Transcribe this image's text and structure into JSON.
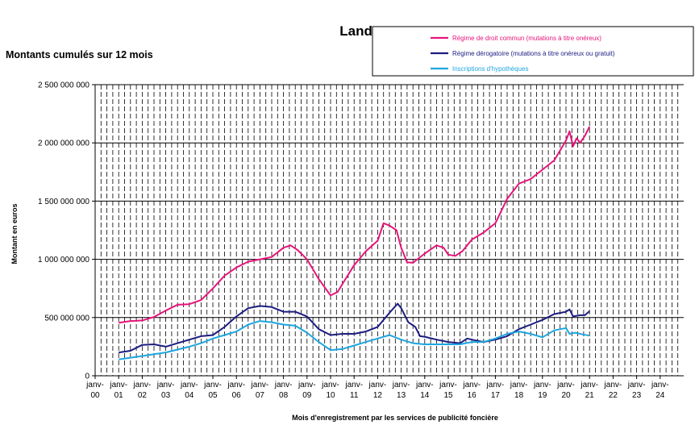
{
  "chart_data": {
    "type": "line",
    "title": "Landes",
    "subtitle": "Montants cumulés sur 12 mois",
    "xlabel": "Mois d'enregistrement par les services de publicité foncière",
    "ylabel": "Montant en euros",
    "ylim": [
      0,
      2500000000
    ],
    "yticks": [
      0,
      500000000,
      1000000000,
      1500000000,
      2000000000,
      2500000000
    ],
    "ytick_labels": [
      "0",
      "500 000 000",
      "1 000 000 000",
      "1 500 000 000",
      "2 000 000 000",
      "2 500 000 000"
    ],
    "x_tick_labels": [
      {
        "top": "janv-",
        "bottom": "00"
      },
      {
        "top": "janv-",
        "bottom": "01"
      },
      {
        "top": "janv-",
        "bottom": "02"
      },
      {
        "top": "janv-",
        "bottom": "03"
      },
      {
        "top": "janv-",
        "bottom": "04"
      },
      {
        "top": "janv-",
        "bottom": "05"
      },
      {
        "top": "janv-",
        "bottom": "06"
      },
      {
        "top": "janv-",
        "bottom": "07"
      },
      {
        "top": "janv-",
        "bottom": "08"
      },
      {
        "top": "janv-",
        "bottom": "09"
      },
      {
        "top": "janv-",
        "bottom": "10"
      },
      {
        "top": "janv-",
        "bottom": "11"
      },
      {
        "top": "janv-",
        "bottom": "12"
      },
      {
        "top": "janv-",
        "bottom": "13"
      },
      {
        "top": "janv-",
        "bottom": "14"
      },
      {
        "top": "janv-",
        "bottom": "15"
      },
      {
        "top": "janv-",
        "bottom": "16"
      },
      {
        "top": "janv-",
        "bottom": "17"
      },
      {
        "top": "janv-",
        "bottom": "18"
      },
      {
        "top": "janv-",
        "bottom": "19"
      },
      {
        "top": "janv-",
        "bottom": "20"
      },
      {
        "top": "janv-",
        "bottom": "21"
      },
      {
        "top": "janv-",
        "bottom": "22"
      },
      {
        "top": "janv-",
        "bottom": "23"
      },
      {
        "top": "janv-",
        "bottom": "24"
      }
    ],
    "x_range_years": [
      2000,
      2025
    ],
    "grid": "vertical-dashed-quarterly, horizontal-solid",
    "legend_position": "top-right",
    "series": [
      {
        "name": "Régime de droit commun (mutations à titre onéreux)",
        "color": "#e6147a",
        "points": [
          [
            2001.0,
            455000000
          ],
          [
            2001.5,
            470000000
          ],
          [
            2002.0,
            475000000
          ],
          [
            2002.5,
            505000000
          ],
          [
            2003.0,
            560000000
          ],
          [
            2003.5,
            610000000
          ],
          [
            2004.0,
            615000000
          ],
          [
            2004.5,
            650000000
          ],
          [
            2005.0,
            750000000
          ],
          [
            2005.5,
            860000000
          ],
          [
            2006.0,
            930000000
          ],
          [
            2006.5,
            980000000
          ],
          [
            2007.0,
            1000000000
          ],
          [
            2007.5,
            1020000000
          ],
          [
            2008.0,
            1100000000
          ],
          [
            2008.3,
            1120000000
          ],
          [
            2008.6,
            1080000000
          ],
          [
            2009.0,
            1000000000
          ],
          [
            2009.5,
            830000000
          ],
          [
            2010.0,
            690000000
          ],
          [
            2010.3,
            720000000
          ],
          [
            2010.6,
            820000000
          ],
          [
            2011.0,
            950000000
          ],
          [
            2011.5,
            1070000000
          ],
          [
            2012.0,
            1160000000
          ],
          [
            2012.25,
            1310000000
          ],
          [
            2012.5,
            1290000000
          ],
          [
            2012.8,
            1250000000
          ],
          [
            2013.0,
            1100000000
          ],
          [
            2013.25,
            975000000
          ],
          [
            2013.5,
            970000000
          ],
          [
            2014.0,
            1050000000
          ],
          [
            2014.5,
            1120000000
          ],
          [
            2014.8,
            1100000000
          ],
          [
            2015.0,
            1040000000
          ],
          [
            2015.3,
            1030000000
          ],
          [
            2015.6,
            1070000000
          ],
          [
            2016.0,
            1170000000
          ],
          [
            2016.5,
            1230000000
          ],
          [
            2017.0,
            1310000000
          ],
          [
            2017.5,
            1520000000
          ],
          [
            2018.0,
            1650000000
          ],
          [
            2018.5,
            1690000000
          ],
          [
            2019.0,
            1770000000
          ],
          [
            2019.5,
            1850000000
          ],
          [
            2020.0,
            2020000000
          ],
          [
            2020.15,
            2100000000
          ],
          [
            2020.3,
            1970000000
          ],
          [
            2020.45,
            2040000000
          ],
          [
            2020.6,
            2000000000
          ],
          [
            2020.8,
            2060000000
          ],
          [
            2021.0,
            2140000000
          ]
        ]
      },
      {
        "name": "Régime dérogatoire (mutations à titre onéreux ou gratuit)",
        "color": "#1c1c80",
        "points": [
          [
            2001.0,
            200000000
          ],
          [
            2001.5,
            215000000
          ],
          [
            2002.0,
            265000000
          ],
          [
            2002.5,
            270000000
          ],
          [
            2003.0,
            250000000
          ],
          [
            2003.5,
            280000000
          ],
          [
            2004.0,
            310000000
          ],
          [
            2004.5,
            340000000
          ],
          [
            2005.0,
            350000000
          ],
          [
            2005.5,
            420000000
          ],
          [
            2006.0,
            510000000
          ],
          [
            2006.5,
            580000000
          ],
          [
            2007.0,
            600000000
          ],
          [
            2007.5,
            590000000
          ],
          [
            2008.0,
            550000000
          ],
          [
            2008.5,
            550000000
          ],
          [
            2009.0,
            510000000
          ],
          [
            2009.5,
            400000000
          ],
          [
            2010.0,
            350000000
          ],
          [
            2010.5,
            360000000
          ],
          [
            2011.0,
            360000000
          ],
          [
            2011.5,
            380000000
          ],
          [
            2012.0,
            420000000
          ],
          [
            2012.5,
            540000000
          ],
          [
            2012.85,
            620000000
          ],
          [
            2013.0,
            580000000
          ],
          [
            2013.3,
            460000000
          ],
          [
            2013.6,
            420000000
          ],
          [
            2013.8,
            340000000
          ],
          [
            2014.0,
            335000000
          ],
          [
            2014.5,
            310000000
          ],
          [
            2015.0,
            290000000
          ],
          [
            2015.5,
            280000000
          ],
          [
            2015.8,
            320000000
          ],
          [
            2016.0,
            310000000
          ],
          [
            2016.5,
            290000000
          ],
          [
            2017.0,
            310000000
          ],
          [
            2017.5,
            340000000
          ],
          [
            2018.0,
            400000000
          ],
          [
            2018.5,
            440000000
          ],
          [
            2019.0,
            480000000
          ],
          [
            2019.5,
            530000000
          ],
          [
            2020.0,
            550000000
          ],
          [
            2020.15,
            570000000
          ],
          [
            2020.3,
            510000000
          ],
          [
            2020.6,
            520000000
          ],
          [
            2020.8,
            520000000
          ],
          [
            2021.0,
            555000000
          ]
        ]
      },
      {
        "name": "Inscriptions d'hypothèques",
        "color": "#1ea6e0",
        "points": [
          [
            2001.0,
            140000000
          ],
          [
            2001.5,
            155000000
          ],
          [
            2002.0,
            170000000
          ],
          [
            2002.5,
            185000000
          ],
          [
            2003.0,
            200000000
          ],
          [
            2003.5,
            225000000
          ],
          [
            2004.0,
            250000000
          ],
          [
            2004.5,
            280000000
          ],
          [
            2005.0,
            320000000
          ],
          [
            2005.5,
            350000000
          ],
          [
            2006.0,
            380000000
          ],
          [
            2006.5,
            440000000
          ],
          [
            2007.0,
            470000000
          ],
          [
            2007.5,
            460000000
          ],
          [
            2008.0,
            440000000
          ],
          [
            2008.5,
            430000000
          ],
          [
            2009.0,
            370000000
          ],
          [
            2009.5,
            290000000
          ],
          [
            2010.0,
            220000000
          ],
          [
            2010.5,
            230000000
          ],
          [
            2011.0,
            260000000
          ],
          [
            2011.5,
            290000000
          ],
          [
            2012.0,
            320000000
          ],
          [
            2012.5,
            350000000
          ],
          [
            2013.0,
            310000000
          ],
          [
            2013.5,
            280000000
          ],
          [
            2014.0,
            270000000
          ],
          [
            2014.5,
            270000000
          ],
          [
            2015.0,
            270000000
          ],
          [
            2015.5,
            270000000
          ],
          [
            2016.0,
            290000000
          ],
          [
            2016.5,
            290000000
          ],
          [
            2017.0,
            320000000
          ],
          [
            2017.5,
            360000000
          ],
          [
            2018.0,
            380000000
          ],
          [
            2018.5,
            360000000
          ],
          [
            2019.0,
            330000000
          ],
          [
            2019.5,
            390000000
          ],
          [
            2020.0,
            410000000
          ],
          [
            2020.15,
            360000000
          ],
          [
            2020.4,
            370000000
          ],
          [
            2020.7,
            355000000
          ],
          [
            2021.0,
            345000000
          ]
        ]
      }
    ]
  }
}
